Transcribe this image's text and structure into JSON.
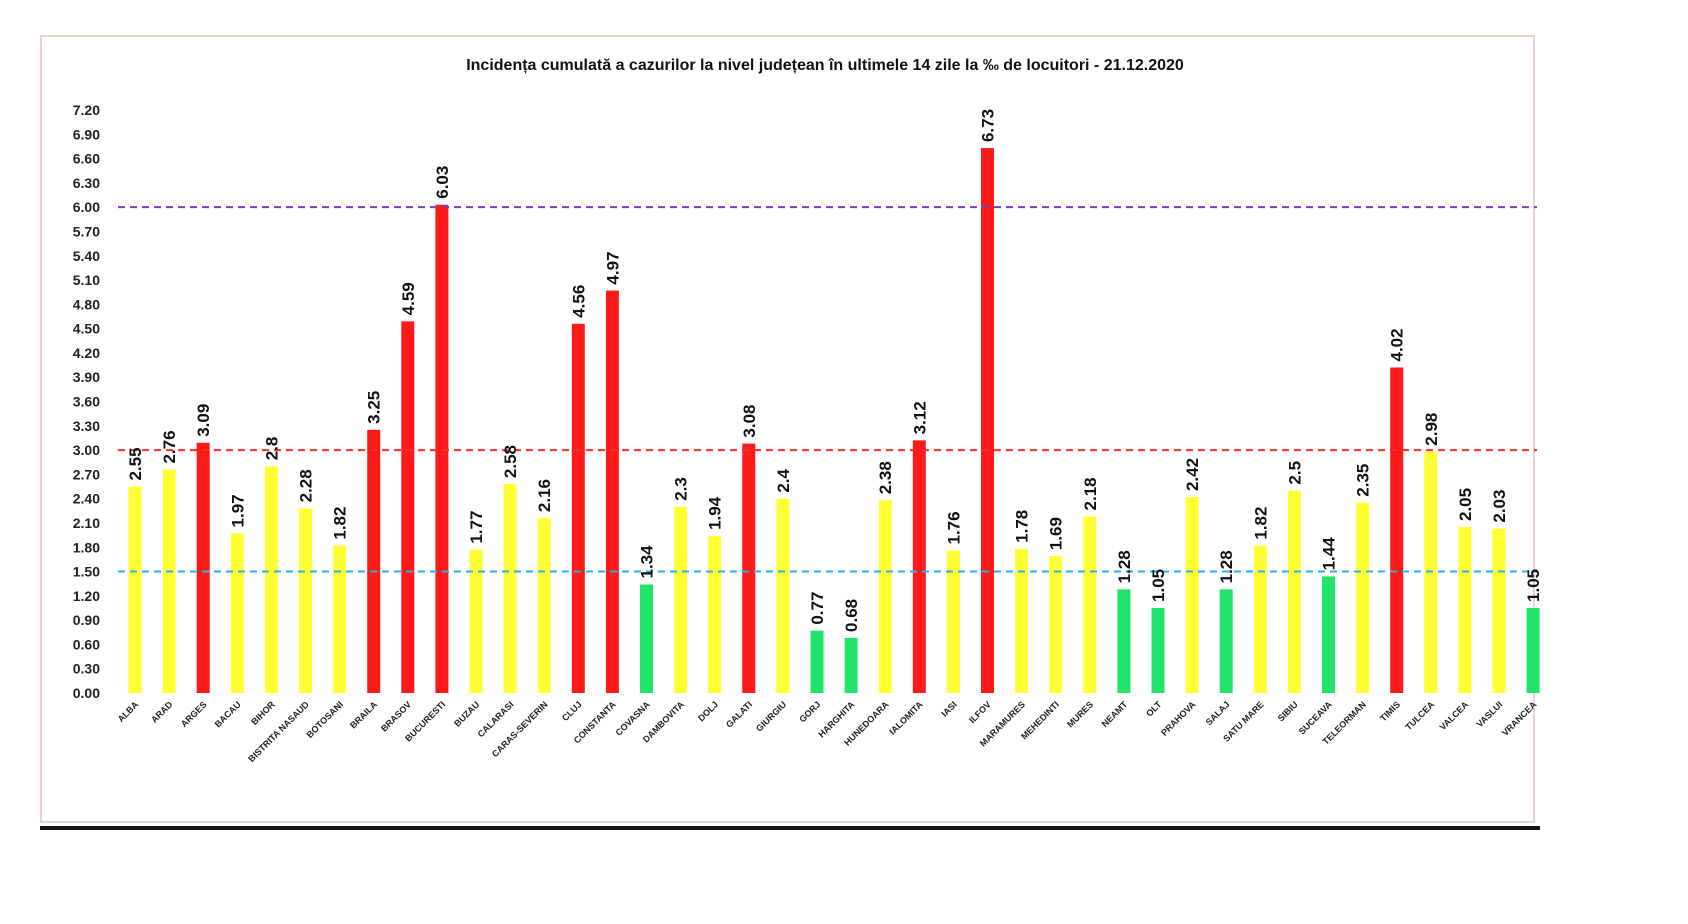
{
  "chart_data": {
    "type": "bar",
    "title": "Incidența cumulată a cazurilor la nivel județean în ultimele 14 zile la ‰ de locuitori - 21.12.2020",
    "xlabel": "",
    "ylabel": "",
    "ylim": [
      0,
      7.2
    ],
    "yticks": [
      "0.00",
      "0.30",
      "0.60",
      "0.90",
      "1.20",
      "1.50",
      "1.80",
      "2.10",
      "2.40",
      "2.70",
      "3.00",
      "3.30",
      "3.60",
      "3.90",
      "4.20",
      "4.50",
      "4.80",
      "5.10",
      "5.40",
      "5.70",
      "6.00",
      "6.30",
      "6.60",
      "6.90",
      "7.20"
    ],
    "grid": false,
    "legend": "none",
    "colors": {
      "red": "#ff1a1a",
      "yellow": "#ffff33",
      "green": "#22e36a"
    },
    "reference_lines": [
      {
        "value": 6.0,
        "color": "#7a3fbf"
      },
      {
        "value": 3.0,
        "color": "#ff2a2a"
      },
      {
        "value": 1.5,
        "color": "#2ab0f0"
      }
    ],
    "categories": [
      "ALBA",
      "ARAD",
      "ARGES",
      "BACAU",
      "BIHOR",
      "BISTRITA NASAUD",
      "BOTOSANI",
      "BRAILA",
      "BRASOV",
      "BUCURESTI",
      "BUZAU",
      "CALARASI",
      "CARAS-SEVERIN",
      "CLUJ",
      "CONSTANTA",
      "COVASNA",
      "DAMBOVITA",
      "DOLJ",
      "GALATI",
      "GIURGIU",
      "GORJ",
      "HARGHITA",
      "HUNEDOARA",
      "IALOMITA",
      "IASI",
      "ILFOV",
      "MARAMURES",
      "MEHEDINTI",
      "MURES",
      "NEAMT",
      "OLT",
      "PRAHOVA",
      "SALAJ",
      "SATU MARE",
      "SIBIU",
      "SUCEAVA",
      "TELEORMAN",
      "TIMIS",
      "TULCEA",
      "VALCEA",
      "VASLUI",
      "VRANCEA"
    ],
    "values": [
      2.55,
      2.76,
      3.09,
      1.97,
      2.8,
      2.28,
      1.82,
      3.25,
      4.59,
      6.03,
      1.77,
      2.58,
      2.16,
      4.56,
      4.97,
      1.34,
      2.3,
      1.94,
      3.08,
      2.4,
      0.77,
      0.68,
      2.38,
      3.12,
      1.76,
      6.73,
      1.78,
      1.69,
      2.18,
      1.28,
      1.05,
      2.42,
      1.28,
      1.82,
      2.5,
      1.44,
      2.35,
      4.02,
      2.98,
      2.05,
      2.03,
      1.05
    ],
    "labels": [
      "2.55",
      "2.76",
      "3.09",
      "1.97",
      "2.8",
      "2.28",
      "1.82",
      "3.25",
      "4.59",
      "6.03",
      "1.77",
      "2.58",
      "2.16",
      "4.56",
      "4.97",
      "1.34",
      "2.3",
      "1.94",
      "3.08",
      "2.4",
      "0.77",
      "0.68",
      "2.38",
      "3.12",
      "1.76",
      "6.73",
      "1.78",
      "1.69",
      "2.18",
      "1.28",
      "1.05",
      "2.42",
      "1.28",
      "1.82",
      "2.5",
      "1.44",
      "2.35",
      "4.02",
      "2.98",
      "2.05",
      "2.03",
      "1.05"
    ],
    "bar_colors": [
      "yellow",
      "yellow",
      "red",
      "yellow",
      "yellow",
      "yellow",
      "yellow",
      "red",
      "red",
      "red",
      "yellow",
      "yellow",
      "yellow",
      "red",
      "red",
      "green",
      "yellow",
      "yellow",
      "red",
      "yellow",
      "green",
      "green",
      "yellow",
      "red",
      "yellow",
      "red",
      "yellow",
      "yellow",
      "yellow",
      "green",
      "green",
      "yellow",
      "green",
      "yellow",
      "yellow",
      "green",
      "yellow",
      "red",
      "yellow",
      "yellow",
      "yellow",
      "green"
    ]
  }
}
